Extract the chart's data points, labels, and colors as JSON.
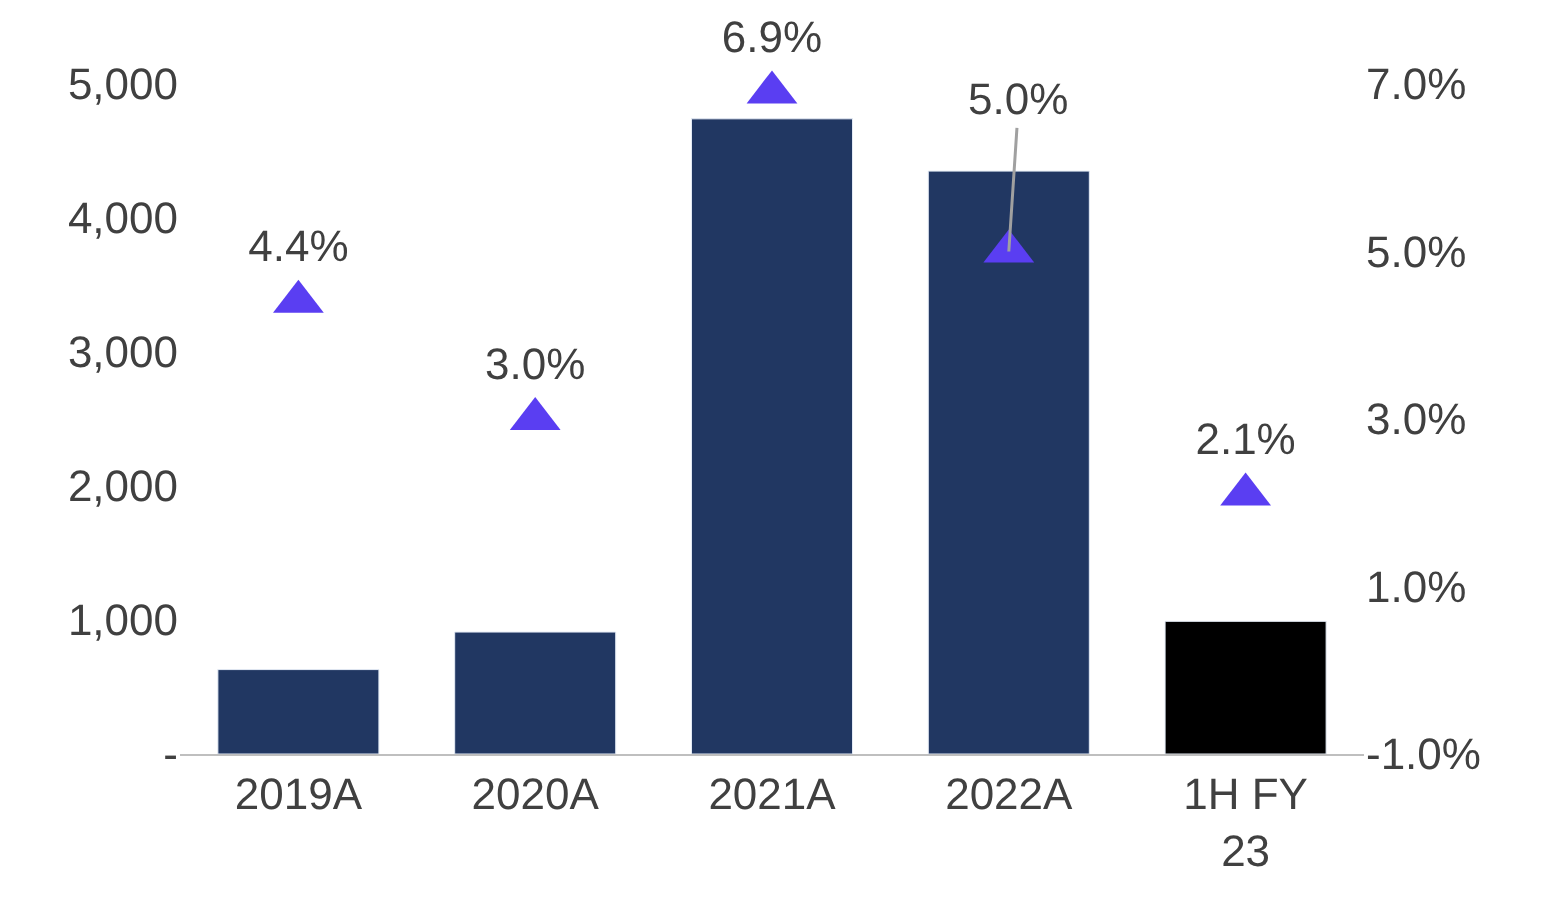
{
  "chart_data": {
    "type": "bar",
    "categories": [
      "2019A",
      "2020A",
      "2021A",
      "2022A",
      "1H FY 23"
    ],
    "series": [
      {
        "colors": [
          "#213762",
          "#213762",
          "#213762",
          "#213762",
          "#000000"
        ],
        "values": [
          630,
          910,
          4740,
          4350,
          990
        ]
      },
      {
        "type": "scatter",
        "axis": "y2",
        "color": "#5a3ef2",
        "marker": "triangle",
        "values": [
          4.4,
          3.0,
          6.9,
          5.0,
          2.1
        ],
        "value_labels": [
          "4.4%",
          "3.0%",
          "6.9%",
          "5.0%",
          "2.1%"
        ]
      }
    ],
    "ylim": [
      0,
      5000
    ],
    "yticks": [
      {
        "value": 0,
        "label": "-"
      },
      {
        "value": 1000,
        "label": "1,000"
      },
      {
        "value": 2000,
        "label": "2,000"
      },
      {
        "value": 3000,
        "label": "3,000"
      },
      {
        "value": 4000,
        "label": "4,000"
      },
      {
        "value": 5000,
        "label": "5,000"
      }
    ],
    "y2lim": [
      -1.0,
      7.0
    ],
    "y2ticks": [
      {
        "value": -1.0,
        "label": "-1.0%"
      },
      {
        "value": 1.0,
        "label": "1.0%"
      },
      {
        "value": 3.0,
        "label": "3.0%"
      },
      {
        "value": 5.0,
        "label": "5.0%"
      },
      {
        "value": 7.0,
        "label": "7.0%"
      }
    ]
  }
}
